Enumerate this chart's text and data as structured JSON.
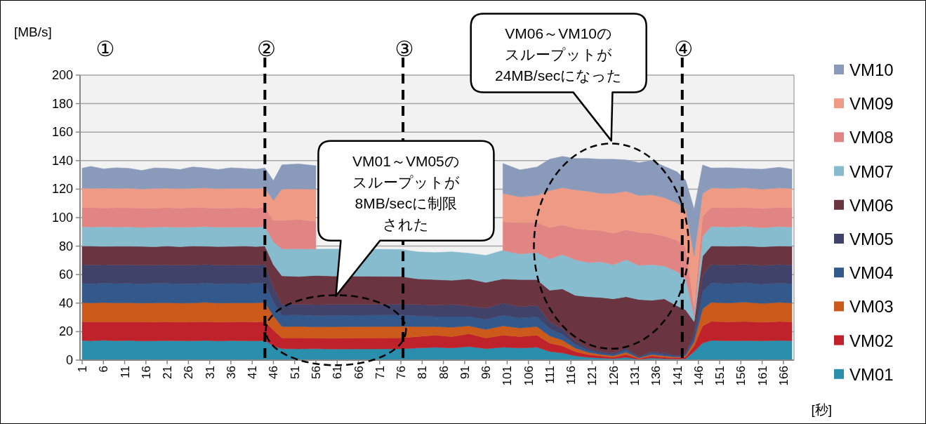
{
  "chart_data": {
    "type": "area",
    "stacked": true,
    "ylabel": "[MB/s]",
    "xlabel": "[秒]",
    "x": [
      1,
      3,
      6,
      9,
      12,
      15,
      18,
      21,
      24,
      27,
      30,
      33,
      36,
      39,
      42,
      44,
      46,
      48,
      52,
      56,
      60,
      76,
      80,
      84,
      88,
      92,
      96,
      100,
      104,
      108,
      111,
      114,
      117,
      120,
      123,
      126,
      129,
      132,
      135,
      138,
      141,
      143,
      145,
      147,
      149,
      153,
      157,
      161,
      165,
      168
    ],
    "xlim": [
      0.5,
      168.5
    ],
    "xticks": [
      1,
      6,
      11,
      16,
      21,
      26,
      31,
      36,
      41,
      46,
      51,
      56,
      61,
      66,
      71,
      76,
      81,
      86,
      91,
      96,
      101,
      106,
      111,
      116,
      121,
      126,
      131,
      136,
      141,
      146,
      151,
      156,
      161,
      166
    ],
    "ylim": [
      0,
      200
    ],
    "yticks": [
      0,
      20,
      40,
      60,
      80,
      100,
      120,
      140,
      160,
      180,
      200
    ],
    "grid": "y",
    "legend": "right",
    "series": [
      {
        "name": "VM01",
        "color": "#2a8fad",
        "values": [
          13.8,
          13.5,
          13.9,
          13.6,
          13.8,
          13.4,
          13.5,
          13.7,
          13.6,
          13.5,
          13.8,
          13.4,
          13.7,
          13.6,
          13.5,
          13.8,
          10,
          8.0,
          7.9,
          8.0,
          7.8,
          7.9,
          8.5,
          9,
          8.5,
          9.5,
          8,
          9,
          8.5,
          9,
          6,
          5,
          3,
          2,
          1.5,
          1,
          2,
          0.5,
          1.5,
          1,
          0.8,
          1,
          6,
          12,
          13.8,
          13.6,
          13.7,
          13.5,
          13.8,
          13.6
        ]
      },
      {
        "name": "VM02",
        "color": "#c0222b",
        "values": [
          13.2,
          13.4,
          13.0,
          13.3,
          13.1,
          13.5,
          13.2,
          13.3,
          13.0,
          13.4,
          13.2,
          13.3,
          13.1,
          13.4,
          13.2,
          13.3,
          11,
          7.6,
          7.7,
          7.5,
          7.6,
          7.7,
          8,
          8.5,
          8,
          9,
          7.5,
          8.5,
          8,
          8.5,
          6,
          5,
          3,
          2,
          1.5,
          1,
          2,
          0.5,
          1.5,
          1,
          0.8,
          1.2,
          4,
          12,
          13.3,
          13.2,
          13.4,
          13.1,
          13.3,
          13.2
        ]
      },
      {
        "name": "VM03",
        "color": "#cc5a1a",
        "values": [
          13.4,
          13.2,
          13.5,
          13.3,
          13.4,
          13.1,
          13.5,
          13.3,
          13.4,
          13.2,
          13.5,
          13.3,
          13.4,
          13.2,
          13.5,
          13.4,
          10,
          7.9,
          8.0,
          7.8,
          8.0,
          8.0,
          7,
          6,
          6.5,
          5.5,
          6,
          6.5,
          6,
          6,
          5,
          4,
          2.5,
          1.5,
          1,
          1,
          1.5,
          0.5,
          1,
          1,
          0.5,
          1,
          3,
          12,
          13.4,
          13.3,
          13.5,
          13.2,
          13.4,
          13.3
        ]
      },
      {
        "name": "VM04",
        "color": "#33598c",
        "values": [
          13.6,
          13.4,
          13.7,
          13.5,
          13.6,
          13.3,
          13.7,
          13.5,
          13.6,
          13.4,
          13.7,
          13.5,
          13.6,
          13.4,
          13.7,
          13.6,
          10,
          8.0,
          8.1,
          7.9,
          8.0,
          8.1,
          7.5,
          7,
          7.5,
          6.5,
          7,
          7.5,
          7,
          7,
          5,
          4,
          2.5,
          1.5,
          1,
          1,
          1.5,
          0.5,
          1,
          1,
          0.5,
          1,
          3,
          12,
          13.6,
          13.5,
          13.7,
          13.4,
          13.6,
          13.5
        ]
      },
      {
        "name": "VM05",
        "color": "#40426a",
        "values": [
          13.0,
          13.2,
          12.9,
          13.1,
          13.0,
          13.3,
          12.8,
          13.1,
          13.0,
          13.2,
          12.9,
          13.1,
          13.0,
          13.2,
          12.9,
          13.0,
          10,
          7.6,
          7.5,
          7.7,
          7.6,
          7.5,
          8,
          8,
          8.5,
          7.5,
          8,
          8.5,
          8,
          8,
          5,
          4,
          2.5,
          1.5,
          1,
          1,
          1.5,
          0.5,
          1,
          1,
          0.5,
          1,
          3,
          12,
          13.0,
          13.1,
          12.9,
          13.2,
          13.0,
          13.1
        ]
      },
      {
        "name": "VM06",
        "color": "#6b3441",
        "values": [
          13.0,
          13.3,
          12.8,
          13.1,
          13.0,
          13.2,
          12.9,
          13.1,
          13.0,
          13.3,
          12.8,
          13.1,
          13.0,
          13.2,
          12.9,
          13.0,
          16,
          20,
          19.5,
          20.5,
          20,
          19.5,
          18,
          18,
          17,
          19,
          18,
          17,
          19,
          18,
          22,
          28,
          32,
          36,
          38,
          38,
          36,
          40,
          36,
          38,
          35,
          30,
          8,
          13,
          13.0,
          13.2,
          12.9,
          13.1,
          13.0,
          13.2
        ]
      },
      {
        "name": "VM07",
        "color": "#87bccf",
        "values": [
          13.6,
          13.4,
          13.8,
          13.5,
          13.6,
          13.3,
          13.7,
          13.5,
          13.6,
          13.4,
          13.8,
          13.5,
          13.6,
          13.4,
          13.7,
          13.6,
          16,
          19,
          19.5,
          18.5,
          19,
          19,
          19,
          19,
          20,
          18,
          19,
          20,
          18,
          19,
          22,
          24,
          25,
          24,
          25,
          24,
          26,
          24,
          25,
          23,
          24,
          22,
          4,
          14,
          13.6,
          13.5,
          13.7,
          13.4,
          13.6,
          13.5
        ]
      },
      {
        "name": "VM08",
        "color": "#e08484",
        "values": [
          13.4,
          13.6,
          13.2,
          13.5,
          13.4,
          13.6,
          13.3,
          13.5,
          13.4,
          13.7,
          13.2,
          13.5,
          13.4,
          13.6,
          13.3,
          13.4,
          15,
          20,
          20.5,
          19.5,
          null,
          null,
          null,
          null,
          null,
          null,
          null,
          20,
          22,
          21,
          22,
          21,
          22,
          23,
          22,
          22,
          21,
          23,
          22,
          21,
          22,
          22,
          6,
          14,
          13.4,
          13.5,
          13.3,
          13.6,
          13.4,
          13.5
        ]
      },
      {
        "name": "VM09",
        "color": "#ee9a84",
        "values": [
          13.7,
          13.5,
          13.9,
          13.6,
          13.7,
          13.4,
          13.8,
          13.6,
          13.7,
          13.5,
          13.9,
          13.6,
          13.7,
          13.5,
          13.8,
          13.7,
          14,
          22,
          21.5,
          22.5,
          null,
          null,
          null,
          null,
          null,
          null,
          null,
          20,
          18,
          19,
          26,
          26,
          27,
          27,
          26,
          28,
          27,
          26,
          27,
          27,
          26,
          27,
          36,
          16,
          13.7,
          13.6,
          13.8,
          13.5,
          13.7,
          13.6
        ]
      },
      {
        "name": "VM10",
        "color": "#8a9aba",
        "values": [
          14.0,
          15.5,
          13.5,
          14.5,
          14.0,
          13.0,
          14.5,
          14.0,
          13.5,
          15.0,
          14.0,
          13.5,
          14.5,
          14.0,
          13.5,
          14.0,
          14,
          17,
          17.5,
          16.5,
          null,
          null,
          null,
          null,
          null,
          null,
          null,
          21,
          19,
          20,
          22,
          22,
          22,
          23,
          24,
          24,
          22,
          23,
          24,
          22,
          22,
          20,
          33,
          20,
          14.0,
          14.5,
          13.5,
          14.0,
          14.5,
          13.5
        ]
      }
    ],
    "ref_lines": [
      {
        "axis": "x",
        "value": 44,
        "label": "②",
        "color": "#000000",
        "line_style": "dashed"
      },
      {
        "axis": "x",
        "value": 76.5,
        "label": "③",
        "color": "#000000",
        "line_style": "dashed"
      },
      {
        "axis": "x",
        "value": 142.2,
        "label": "④",
        "color": "#000000",
        "line_style": "dashed"
      }
    ],
    "annotations": [
      "①",
      "VM01～VM05のスループットが8MB/secに制限された",
      "VM06～VM10のスループットが24MB/secになった"
    ]
  }
}
